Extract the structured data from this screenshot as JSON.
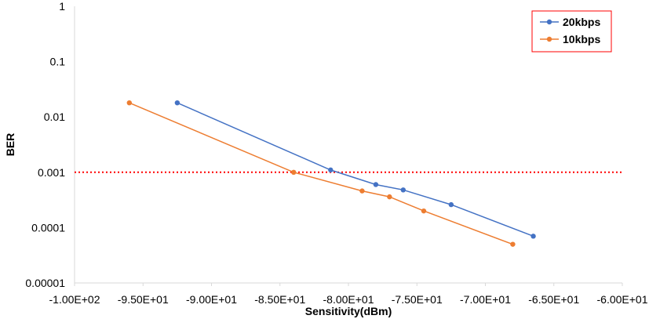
{
  "chart_data": {
    "type": "line",
    "title": "",
    "xlabel": "Sensitivity(dBm)",
    "ylabel": "BER",
    "xlim": [
      -100,
      -60
    ],
    "ylim": [
      1e-05,
      1
    ],
    "yscale": "log",
    "x_ticks": [
      -100,
      -95,
      -90,
      -85,
      -80,
      -75,
      -70,
      -65,
      -60
    ],
    "x_tick_labels": [
      "-1.00E+02",
      "-9.50E+01",
      "-9.00E+01",
      "-8.50E+01",
      "-8.00E+01",
      "-7.50E+01",
      "-7.00E+01",
      "-6.50E+01",
      "-6.00E+01"
    ],
    "y_ticks": [
      1e-05,
      0.0001,
      0.001,
      0.01,
      0.1,
      1
    ],
    "y_tick_labels": [
      "0.00001",
      "0.0001",
      "0.001",
      "0.01",
      "0.1",
      "1"
    ],
    "grid": false,
    "legend": "top-right",
    "threshold_line": {
      "y": 0.001,
      "color": "#ff0000",
      "style": "dotted"
    },
    "series": [
      {
        "name": "20kbps",
        "color": "#4472c4",
        "x": [
          -92.5,
          -81.3,
          -78.0,
          -76.0,
          -72.5,
          -66.5
        ],
        "y": [
          0.018,
          0.0011,
          0.0006,
          0.00048,
          0.00026,
          7e-05
        ]
      },
      {
        "name": "10kbps",
        "color": "#ed7d31",
        "x": [
          -96.0,
          -84.0,
          -79.0,
          -77.0,
          -74.5,
          -68.0
        ],
        "y": [
          0.018,
          0.001,
          0.00046,
          0.00036,
          0.0002,
          5e-05
        ]
      }
    ]
  }
}
